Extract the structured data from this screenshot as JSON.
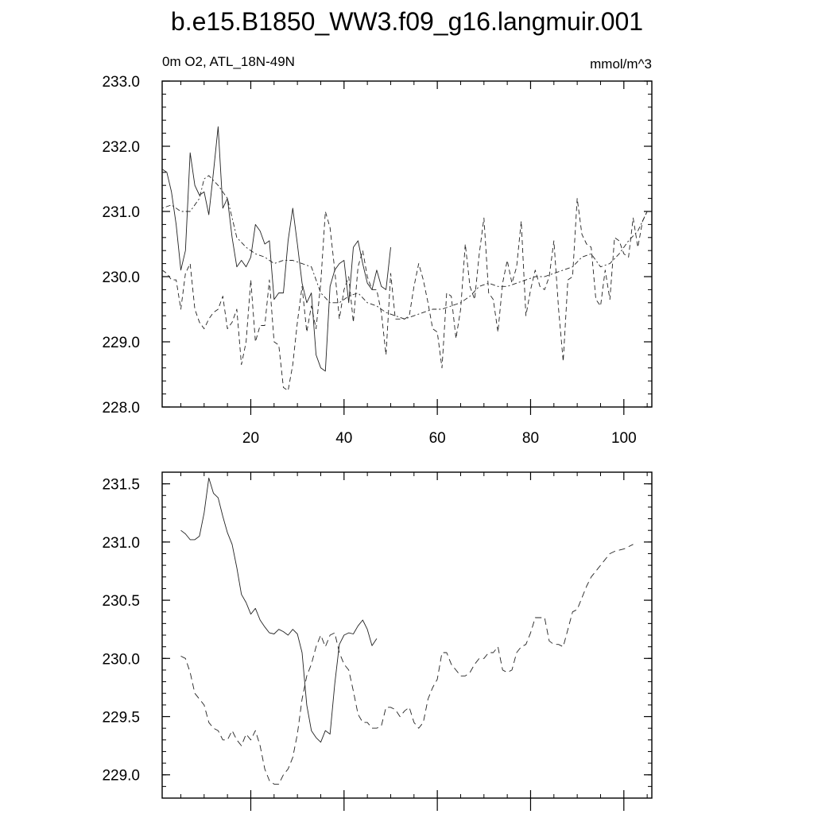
{
  "figure": {
    "title": "b.e15.B1850_WW3.f09_g16.langmuir.001",
    "left_string": "0m O2, ATL_18N-49N",
    "right_string": "mmol/m^3"
  },
  "chart_data": [
    {
      "type": "line",
      "panel": "top",
      "xlim": [
        1,
        106
      ],
      "ylim": [
        228.0,
        233.0
      ],
      "x_tick_labels": [
        "20",
        "40",
        "60",
        "80",
        "100"
      ],
      "x_ticks": [
        20,
        40,
        60,
        80,
        100
      ],
      "y_tick_labels": [
        "233.0",
        "232.0",
        "231.0",
        "230.0",
        "229.0",
        "228.0"
      ],
      "y_ticks": [
        233,
        232,
        231,
        230,
        229,
        228
      ],
      "grid": false,
      "legend": "none",
      "series": [
        {
          "style": "solid",
          "x": [
            1,
            2,
            3,
            4,
            5,
            6,
            7,
            8,
            9,
            10,
            11,
            12,
            13,
            14,
            15,
            16,
            17,
            18,
            19,
            20,
            21,
            22,
            23,
            24,
            25,
            26,
            27,
            28,
            29,
            30,
            31,
            32,
            33,
            34,
            35,
            36,
            37,
            38,
            39,
            40,
            41,
            42,
            43,
            44,
            45,
            46,
            47,
            48,
            49,
            50
          ],
          "values": [
            231.65,
            231.6,
            231.3,
            230.8,
            230.1,
            230.4,
            231.9,
            231.4,
            231.25,
            231.3,
            230.95,
            231.6,
            232.3,
            231.05,
            231.2,
            230.6,
            230.15,
            230.25,
            230.15,
            230.3,
            230.8,
            230.7,
            230.5,
            230.55,
            229.65,
            229.75,
            229.75,
            230.55,
            231.05,
            230.5,
            229.9,
            229.6,
            229.75,
            228.8,
            228.6,
            228.55,
            229.85,
            230.1,
            230.2,
            230.25,
            229.6,
            230.45,
            230.55,
            230.2,
            229.9,
            229.8,
            230.1,
            229.85,
            229.8,
            230.45
          ]
        },
        {
          "style": "dot-dash",
          "x": [
            1,
            3,
            5,
            7,
            9,
            10,
            11,
            13,
            15,
            17,
            19,
            21,
            23,
            25,
            27,
            29,
            31,
            33,
            35,
            37,
            39,
            41,
            43,
            45,
            47,
            49,
            51,
            53,
            55,
            57,
            59,
            61,
            63,
            65,
            67,
            69,
            71,
            73,
            75,
            77,
            79,
            81,
            83,
            85,
            87,
            89,
            91,
            93,
            95,
            97,
            99,
            101,
            103,
            105
          ],
          "values": [
            231.05,
            231.1,
            231.0,
            231.0,
            231.2,
            231.5,
            231.55,
            231.4,
            231.2,
            230.6,
            230.45,
            230.35,
            230.3,
            230.2,
            230.25,
            230.25,
            230.2,
            230.15,
            229.75,
            229.6,
            229.6,
            229.7,
            229.75,
            229.6,
            229.55,
            229.45,
            229.4,
            229.35,
            229.4,
            229.45,
            229.5,
            229.5,
            229.55,
            229.6,
            229.7,
            229.85,
            229.9,
            229.85,
            229.85,
            229.9,
            229.95,
            230.0,
            230.0,
            230.05,
            230.1,
            230.15,
            230.3,
            230.35,
            230.15,
            230.2,
            230.35,
            230.55,
            230.7,
            231.0
          ]
        },
        {
          "style": "short-dash",
          "x": [
            1,
            2,
            3,
            4,
            5,
            6,
            7,
            8,
            9,
            10,
            11,
            12,
            13,
            14,
            15,
            16,
            17,
            18,
            19,
            20,
            21,
            22,
            23,
            24,
            25,
            26,
            27,
            28,
            29,
            30,
            31,
            32,
            33,
            34,
            35,
            36,
            37,
            38,
            39,
            40,
            41,
            42,
            43,
            44,
            45,
            46,
            47,
            48,
            49,
            50,
            51,
            52,
            53,
            54,
            55,
            56,
            57,
            58,
            59,
            60,
            61,
            62,
            63,
            64,
            65,
            66,
            67,
            68,
            69,
            70,
            71,
            72,
            73,
            74,
            75,
            76,
            77,
            78,
            79,
            80,
            81,
            82,
            83,
            84,
            85,
            86,
            87,
            88,
            89,
            90,
            91,
            92,
            93,
            94,
            95,
            96,
            97,
            98,
            99,
            100,
            101,
            102,
            103,
            104,
            105
          ],
          "values": [
            230.1,
            230.05,
            229.95,
            229.95,
            229.5,
            230.05,
            230.2,
            229.5,
            229.3,
            229.2,
            229.35,
            229.45,
            229.5,
            229.7,
            229.2,
            229.3,
            229.5,
            228.65,
            229.0,
            229.95,
            229.0,
            229.25,
            229.25,
            229.95,
            229.0,
            228.95,
            228.3,
            228.25,
            228.65,
            229.3,
            229.85,
            229.15,
            229.55,
            229.2,
            229.9,
            231.0,
            230.75,
            230.1,
            229.35,
            229.8,
            230.0,
            229.3,
            230.15,
            230.4,
            230.0,
            229.8,
            229.8,
            229.45,
            228.8,
            230.05,
            229.35,
            229.35,
            229.35,
            229.4,
            229.85,
            230.2,
            229.95,
            229.6,
            229.2,
            229.15,
            228.6,
            229.75,
            229.7,
            229.05,
            229.5,
            230.5,
            229.85,
            229.65,
            230.35,
            230.9,
            229.75,
            229.65,
            229.15,
            229.9,
            230.25,
            229.9,
            230.15,
            230.85,
            229.4,
            229.8,
            230.1,
            229.85,
            229.8,
            230.0,
            230.55,
            229.5,
            228.7,
            229.95,
            230.0,
            231.2,
            230.65,
            230.5,
            230.45,
            229.65,
            229.55,
            230.1,
            229.65,
            230.6,
            230.55,
            230.35,
            230.3,
            230.9,
            230.45,
            230.85,
            231.0
          ]
        }
      ]
    },
    {
      "type": "line",
      "panel": "bottom",
      "xlim": [
        1,
        106
      ],
      "ylim": [
        228.8,
        231.6
      ],
      "x_ticks": [
        20,
        40,
        60,
        80,
        100
      ],
      "y_tick_labels": [
        "231.5",
        "231.0",
        "230.5",
        "230.0",
        "229.5",
        "229.0"
      ],
      "y_ticks": [
        231.5,
        231.0,
        230.5,
        230.0,
        229.5,
        229.0
      ],
      "grid": false,
      "legend": "none",
      "series": [
        {
          "style": "solid",
          "x": [
            5,
            6,
            7,
            8,
            9,
            10,
            11,
            12,
            13,
            14,
            15,
            16,
            17,
            18,
            19,
            20,
            21,
            22,
            23,
            24,
            25,
            26,
            27,
            28,
            29,
            30,
            31,
            32,
            33,
            34,
            35,
            36,
            37,
            38,
            39,
            40,
            41,
            42,
            43,
            44,
            45,
            46,
            47
          ],
          "values": [
            231.1,
            231.07,
            231.02,
            231.02,
            231.05,
            231.25,
            231.55,
            231.42,
            231.38,
            231.22,
            231.08,
            230.98,
            230.78,
            230.55,
            230.48,
            230.38,
            230.43,
            230.33,
            230.27,
            230.22,
            230.21,
            230.25,
            230.23,
            230.2,
            230.25,
            230.21,
            230.05,
            229.6,
            229.38,
            229.32,
            229.28,
            229.38,
            229.35,
            229.78,
            230.12,
            230.2,
            230.22,
            230.21,
            230.28,
            230.33,
            230.25,
            230.11,
            230.17
          ]
        },
        {
          "style": "dash",
          "x": [
            5,
            6,
            7,
            8,
            9,
            10,
            11,
            12,
            13,
            14,
            15,
            16,
            17,
            18,
            19,
            20,
            21,
            22,
            23,
            24,
            25,
            26,
            27,
            28,
            29,
            30,
            31,
            32,
            33,
            34,
            35,
            36,
            37,
            38,
            39,
            40,
            41,
            42,
            43,
            44,
            45,
            46,
            47,
            48,
            49,
            50,
            51,
            52,
            53,
            54,
            55,
            56,
            57,
            58,
            59,
            60,
            61,
            62,
            63,
            64,
            65,
            66,
            67,
            68,
            69,
            70,
            71,
            72,
            73,
            74,
            75,
            76,
            77,
            78,
            79,
            80,
            81,
            82,
            83,
            84,
            85,
            86,
            87,
            88,
            89,
            90,
            91,
            92,
            93,
            94,
            95,
            96,
            97,
            98,
            99,
            100,
            101,
            102
          ],
          "values": [
            230.02,
            230.0,
            229.88,
            229.7,
            229.65,
            229.6,
            229.45,
            229.4,
            229.38,
            229.3,
            229.3,
            229.38,
            229.3,
            229.25,
            229.35,
            229.3,
            229.38,
            229.25,
            229.05,
            228.95,
            228.92,
            228.92,
            229.0,
            229.05,
            229.15,
            229.35,
            229.65,
            229.85,
            229.95,
            230.1,
            230.2,
            230.1,
            230.2,
            230.22,
            230.05,
            229.95,
            229.9,
            229.72,
            229.52,
            229.45,
            229.45,
            229.4,
            229.4,
            229.42,
            229.58,
            229.58,
            229.56,
            229.5,
            229.55,
            229.58,
            229.45,
            229.4,
            229.45,
            229.65,
            229.75,
            229.82,
            230.05,
            230.05,
            229.95,
            229.9,
            229.85,
            229.85,
            229.88,
            229.95,
            230.0,
            230.0,
            230.05,
            230.05,
            230.1,
            229.9,
            229.88,
            229.9,
            230.05,
            230.1,
            230.12,
            230.22,
            230.35,
            230.35,
            230.35,
            230.15,
            230.12,
            230.12,
            230.1,
            230.25,
            230.4,
            230.42,
            230.52,
            230.62,
            230.7,
            230.75,
            230.8,
            230.85,
            230.9,
            230.92,
            230.93,
            230.94,
            230.96,
            230.98
          ]
        }
      ]
    }
  ]
}
